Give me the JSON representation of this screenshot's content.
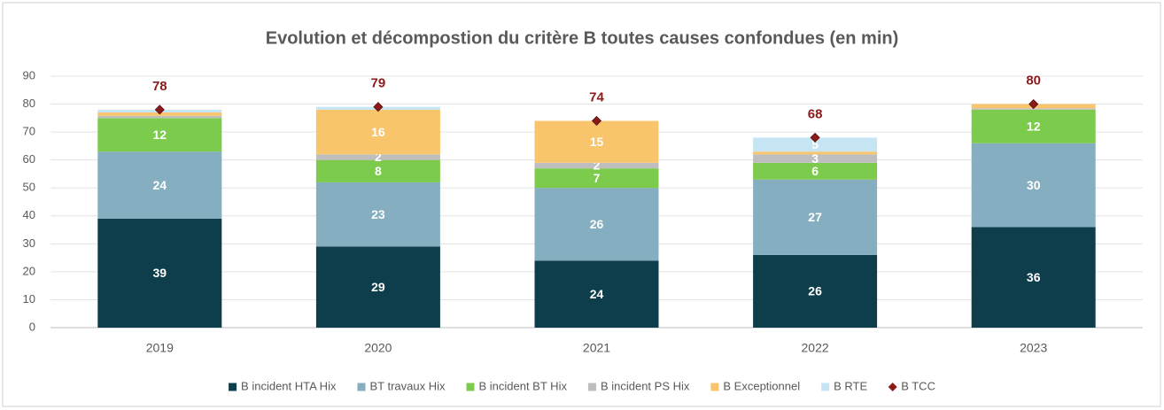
{
  "chart_data": {
    "type": "bar",
    "stacked": true,
    "title": "Evolution et décompostion du critère B toutes causes confondues (en min)",
    "categories": [
      "2019",
      "2020",
      "2021",
      "2022",
      "2023"
    ],
    "series": [
      {
        "name": "B incident HTA Hix",
        "color": "#0e3d4b",
        "values": [
          39,
          29,
          24,
          26,
          36
        ],
        "value_labels": [
          "39",
          "29",
          "24",
          "26",
          "36"
        ]
      },
      {
        "name": "BT travaux Hix",
        "color": "#85afc0",
        "values": [
          24,
          23,
          26,
          27,
          30
        ],
        "value_labels": [
          "24",
          "23",
          "26",
          "27",
          "30"
        ]
      },
      {
        "name": "B incident BT Hix",
        "color": "#7dcb4c",
        "values": [
          12,
          8,
          7,
          6,
          12
        ],
        "value_labels": [
          "12",
          "8",
          "7",
          "6",
          "12"
        ]
      },
      {
        "name": "B incident PS Hix",
        "color": "#bebebe",
        "values": [
          0.8,
          2,
          2,
          3,
          0.5
        ],
        "value_labels": [
          null,
          "2",
          "2",
          "3",
          null
        ]
      },
      {
        "name": "B Exceptionnel",
        "color": "#f9c56c",
        "values": [
          1.2,
          16,
          15,
          1,
          1.5
        ],
        "value_labels": [
          null,
          "16",
          "15",
          null,
          null
        ]
      },
      {
        "name": "B RTE",
        "color": "#c6e5f4",
        "values": [
          1,
          1,
          0,
          5,
          0
        ],
        "value_labels": [
          null,
          null,
          null,
          "5",
          null
        ]
      },
      {
        "name": "B TCC",
        "type": "scatter",
        "color": "#8b1a1a",
        "values": [
          78,
          79,
          74,
          68,
          80
        ],
        "value_labels": [
          "78",
          "79",
          "74",
          "68",
          "80"
        ]
      }
    ],
    "ylim": [
      0,
      90
    ],
    "yticks": [
      0,
      10,
      20,
      30,
      40,
      50,
      60,
      70,
      80,
      90
    ],
    "grid": true,
    "legend": "bottom"
  }
}
